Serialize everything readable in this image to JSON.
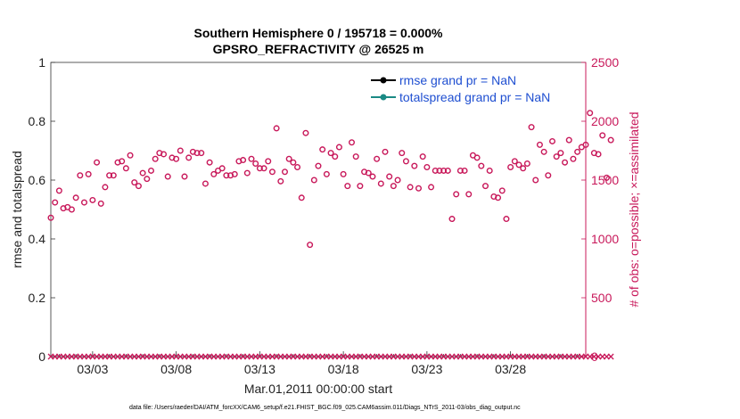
{
  "chart_data": {
    "type": "scatter",
    "title_line1": "Southern Hemisphere 0 / 195718 = 0.000%",
    "title_line2": "GPSRO_REFRACTIVITY @ 26525 m",
    "xlabel": "Mar.01,2011 00:00:00 start",
    "ylabel_left": "rmse and totalspread",
    "ylabel_right": "# of obs: o=possible; ×=assimilated",
    "ylim_left": [
      0,
      1
    ],
    "ylim_right": [
      0,
      2500
    ],
    "yticks_left": [
      "0",
      "0.2",
      "0.4",
      "0.6",
      "0.8",
      "1"
    ],
    "yticks_left_values": [
      0,
      0.2,
      0.4,
      0.6,
      0.8,
      1
    ],
    "yticks_right": [
      "0",
      "500",
      "1000",
      "1500",
      "2000",
      "2500"
    ],
    "yticks_right_values": [
      0,
      500,
      1000,
      1500,
      2000,
      2500
    ],
    "xlim_days": [
      0.5,
      32.5
    ],
    "xtick_labels": [
      "03/03",
      "03/08",
      "03/13",
      "03/18",
      "03/23",
      "03/28"
    ],
    "xtick_days": [
      3,
      8,
      13,
      18,
      23,
      28
    ],
    "legend": [
      {
        "label": "rmse grand pr = NaN",
        "color": "#000000"
      },
      {
        "label": "totalspread grand pr = NaN",
        "color": "#1a8a84"
      }
    ],
    "legend_position": "top-right",
    "series_possible": {
      "color": "#c8185a",
      "marker": "circle",
      "x_step_days": 0.25,
      "x_start_day": 0.5,
      "values": [
        1180,
        1310,
        1410,
        1260,
        1270,
        1250,
        1350,
        1540,
        1310,
        1550,
        1330,
        1650,
        1300,
        1440,
        1540,
        1540,
        1650,
        1660,
        1600,
        1710,
        1480,
        1450,
        1560,
        1510,
        1580,
        1680,
        1730,
        1720,
        1530,
        1690,
        1680,
        1750,
        1530,
        1690,
        1740,
        1730,
        1730,
        1470,
        1650,
        1550,
        1580,
        1600,
        1540,
        1540,
        1550,
        1660,
        1670,
        1560,
        1680,
        1640,
        1600,
        1600,
        1660,
        1570,
        1940,
        1490,
        1570,
        1680,
        1650,
        1610,
        1350,
        1900,
        950,
        1500,
        1620,
        1760,
        1550,
        1730,
        1700,
        1780,
        1550,
        1450,
        1820,
        1700,
        1450,
        1570,
        1560,
        1530,
        1680,
        1470,
        1740,
        1530,
        1450,
        1500,
        1730,
        1660,
        1440,
        1620,
        1430,
        1700,
        1610,
        1440,
        1580,
        1580,
        1580,
        1580,
        1170,
        1380,
        1580,
        1580,
        1380,
        1710,
        1690,
        1620,
        1450,
        1580,
        1360,
        1350,
        1410,
        1170,
        1610,
        1660,
        1630,
        1600,
        1640,
        1950,
        1500,
        1800,
        1740,
        1540,
        1830,
        1700,
        1730,
        1650,
        1840,
        1680,
        1740,
        1780,
        1800,
        2070,
        1730,
        1720,
        1880,
        1520,
        1840
      ],
      "assimilated_value": 0
    }
  },
  "footer": {
    "data_file": "data file: /Users/raeder/DAI/ATM_forcXX/CAM6_setup/f.e21.FHIST_BGC.f09_025.CAM6assim.011/Diags_NTrS_2011-03/obs_diag_output.nc"
  }
}
